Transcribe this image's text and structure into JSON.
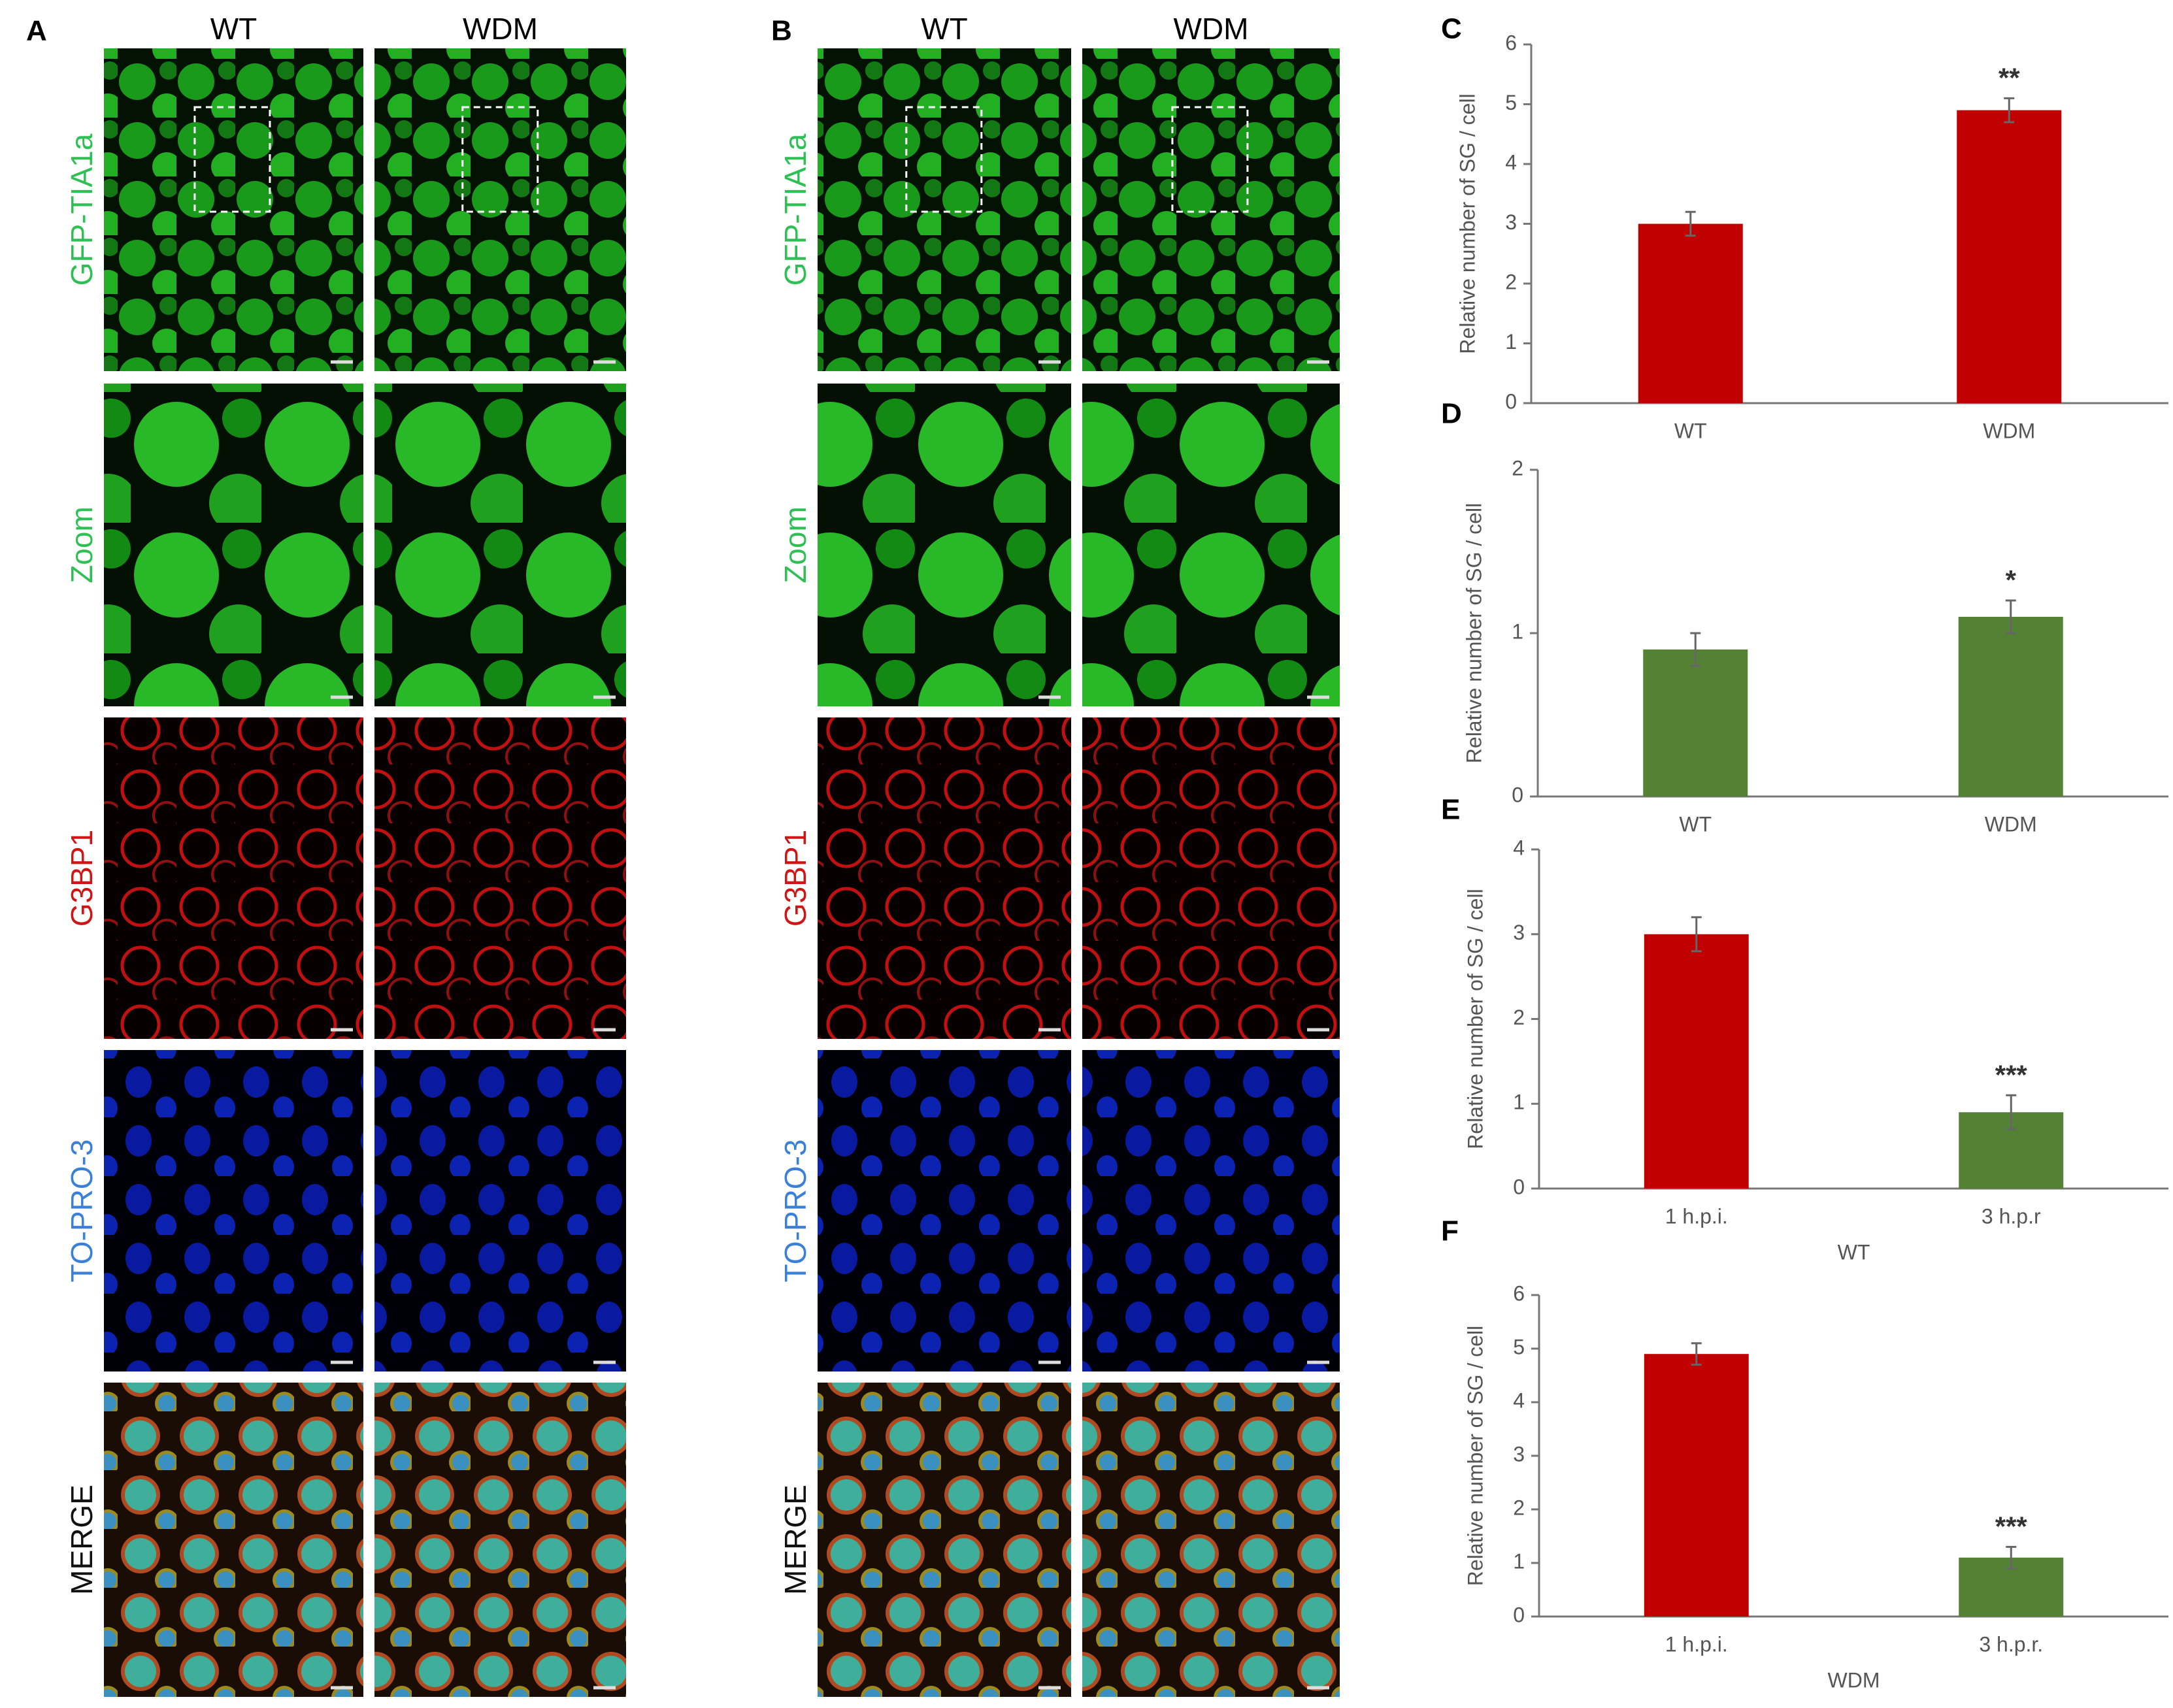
{
  "panels": [
    {
      "letter": "A",
      "columns": [
        "WT",
        "WDM"
      ],
      "rows": [
        "GFP-TIA1a",
        "Zoom",
        "G3BP1",
        "TO-PRO-3",
        "MERGE"
      ],
      "row_colors": [
        "#2fbf55",
        "#2fbf55",
        "#d01515",
        "#3a80d6",
        "#111111"
      ]
    },
    {
      "letter": "B",
      "columns": [
        "WT",
        "WDM"
      ],
      "rows": [
        "GFP-TIA1a",
        "Zoom",
        "G3BP1",
        "TO-PRO-3",
        "MERGE"
      ],
      "row_colors": [
        "#2fbf55",
        "#2fbf55",
        "#d01515",
        "#3a80d6",
        "#111111"
      ]
    }
  ],
  "chart_data": [
    {
      "letter": "C",
      "type": "bar",
      "ylabel": "Relative number of SG / cell",
      "categories": [
        "WT",
        "WDM"
      ],
      "values": [
        3.0,
        4.9
      ],
      "errors": [
        0.2,
        0.2
      ],
      "colors": [
        "#c00000",
        "#c00000"
      ],
      "significance": [
        null,
        "**"
      ],
      "ylim": [
        0,
        6
      ],
      "yticks": [
        0,
        1,
        2,
        3,
        4,
        5,
        6
      ]
    },
    {
      "letter": "D",
      "type": "bar",
      "ylabel": "Relative number of SG / cell",
      "categories": [
        "WT",
        "WDM"
      ],
      "values": [
        0.9,
        1.1
      ],
      "errors": [
        0.1,
        0.1
      ],
      "colors": [
        "#548235",
        "#548235"
      ],
      "significance": [
        null,
        "*"
      ],
      "ylim": [
        0,
        2
      ],
      "yticks": [
        0,
        1,
        2
      ]
    },
    {
      "letter": "E",
      "type": "bar",
      "ylabel": "Relative number of SG / cell",
      "xlabel": "WT",
      "categories": [
        "1 h.p.i.",
        "3 h.p.r"
      ],
      "values": [
        3.0,
        0.9
      ],
      "errors": [
        0.2,
        0.2
      ],
      "colors": [
        "#c00000",
        "#548235"
      ],
      "significance": [
        null,
        "***"
      ],
      "ylim": [
        0,
        4
      ],
      "yticks": [
        0,
        1,
        2,
        3,
        4
      ]
    },
    {
      "letter": "F",
      "type": "bar",
      "ylabel": "Relative number of  SG / cell",
      "xlabel": "WDM",
      "categories": [
        "1 h.p.i.",
        "3 h.p.r."
      ],
      "values": [
        4.9,
        1.1
      ],
      "errors": [
        0.2,
        0.2
      ],
      "colors": [
        "#c00000",
        "#548235"
      ],
      "significance": [
        null,
        "***"
      ],
      "ylim": [
        0,
        6
      ],
      "yticks": [
        0,
        1,
        2,
        3,
        4,
        5,
        6
      ]
    }
  ]
}
